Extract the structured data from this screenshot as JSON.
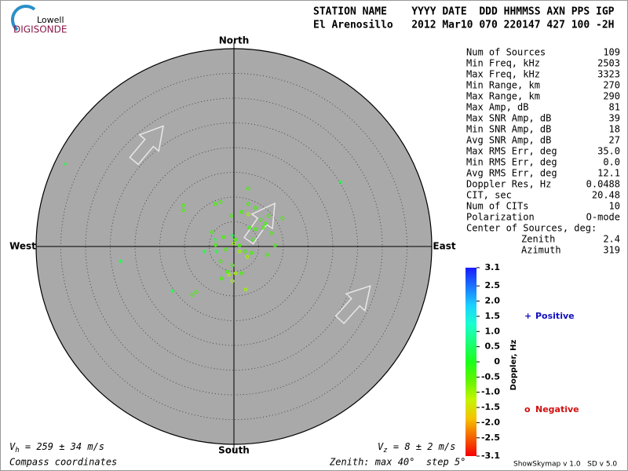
{
  "chart_data": {
    "type": "skymap",
    "logo": {
      "top": "Lowell",
      "main": "DIGISONDE"
    },
    "header": [
      "STATION NAME    YYYY DATE  DDD HHMMSS AXN PPS IGP",
      "El Arenosillo   2012 Mar10 070 220147 427 100 -2H"
    ],
    "directions": {
      "north": "North",
      "south": "South",
      "east": "East",
      "west": "West"
    },
    "rlim": [
      0,
      40
    ],
    "rticks": [
      5,
      10,
      15,
      20,
      25,
      30,
      35,
      40
    ],
    "points": {
      "x": [
        -34.1,
        21.6,
        -22.9,
        -12.4,
        -3.8,
        -3.5,
        -6.0,
        -0.3,
        -10.3,
        -10.3,
        -3.8,
        -2.7,
        2.9,
        -0.6,
        -8.4,
        -7.6,
        -4.4,
        -2.1,
        0.3,
        1.1,
        2.2,
        3.5,
        -1.6,
        -2.7,
        -1.3,
        -0.3,
        3.8,
        6.7,
        8.3,
        7.5,
        9.8,
        2.9,
        4.3,
        5.4,
        6.3,
        3.2,
        4.4,
        5.9,
        7.0,
        1.6,
        -3.7,
        -2.5,
        1.6,
        -0.3,
        0.3,
        2.4,
        2.9,
        0,
        1.1,
        -1.0,
        2.7
      ],
      "y": [
        16.7,
        13.0,
        -3.0,
        -9.0,
        1.4,
        -1.0,
        -1.0,
        2.2,
        8.3,
        7.3,
        8.6,
        9.0,
        11.7,
        6.2,
        -9.8,
        -9.2,
        2.9,
        1.9,
        1.4,
        0.2,
        -1.0,
        -1.3,
        -0.6,
        -3.0,
        -5.1,
        -3.8,
        1.4,
        -1.7,
        0.2,
        2.7,
        5.7,
        8.6,
        7.8,
        5.4,
        4.6,
        3.8,
        3.5,
        3.8,
        6.2,
        7.0,
        0.3,
        -6.5,
        -5.4,
        -7.0,
        -5.4,
        -8.7,
        6.5,
        0.6,
        -1.0,
        -5.7,
        -2.1
      ],
      "doppler": [
        0.3,
        0.3,
        0.3,
        0.3,
        0.3,
        0.3,
        0.3,
        0.3,
        -0.4,
        -0.4,
        -0.4,
        -0.4,
        -0.4,
        -0.4,
        -0.4,
        -0.4,
        -0.4,
        -0.4,
        -0.4,
        -0.4,
        -0.4,
        -0.4,
        -0.4,
        -0.4,
        -0.4,
        -0.4,
        -0.4,
        -0.4,
        -0.4,
        -0.4,
        -0.4,
        -0.4,
        -0.4,
        -0.4,
        -0.4,
        -0.4,
        -0.4,
        -0.4,
        -0.4,
        -0.4,
        -0.4,
        -0.4,
        -0.4,
        -1.0,
        -1.0,
        -1.0,
        -1.0,
        -1.0,
        -1.0,
        -1.0,
        -1.0
      ]
    },
    "stats": [
      {
        "label": "Num of Sources",
        "value": 109
      },
      {
        "label": "Min Freq, kHz",
        "value": 2503
      },
      {
        "label": "Max Freq, kHz",
        "value": 3323
      },
      {
        "label": "Min Range, km",
        "value": 270
      },
      {
        "label": "Max Range, km",
        "value": 290
      },
      {
        "label": "Max Amp, dB",
        "value": 81
      },
      {
        "label": "Max SNR Amp, dB",
        "value": 39
      },
      {
        "label": "Min SNR Amp, dB",
        "value": 18
      },
      {
        "label": "Avg SNR Amp, dB",
        "value": 27
      },
      {
        "label": "Max RMS Err, deg",
        "value": "35.0"
      },
      {
        "label": "Min RMS Err, deg",
        "value": "0.0"
      },
      {
        "label": "Avg RMS Err, deg",
        "value": 12.1
      },
      {
        "label": "Doppler Res, Hz",
        "value": 0.0488
      },
      {
        "label": "CIT, sec",
        "value": 20.48
      },
      {
        "label": "Num of CITs",
        "value": 10
      },
      {
        "label": "Polarization",
        "value": "O-mode"
      }
    ],
    "center_of_sources": {
      "label": "Center of Sources, deg:",
      "rows": [
        {
          "label": "Zenith",
          "value": 2.4
        },
        {
          "label": "Azimuth",
          "value": 319
        }
      ]
    },
    "colorbar": {
      "label": "Doppler, Hz",
      "clim": [
        -3.1,
        3.1
      ],
      "ticks": [
        3.1,
        2.5,
        {
          "value": 2,
          "label": "2.0"
        },
        1.5,
        {
          "value": 1,
          "label": "1.0"
        },
        0.5,
        0,
        -0.5,
        {
          "value": -1,
          "label": "-1.0"
        },
        -1.5,
        {
          "value": -2,
          "label": "-2.0"
        },
        -2.5,
        -3.1
      ]
    },
    "legend": [
      {
        "symbol": "+",
        "label": "Positive",
        "color": "#1010c0"
      },
      {
        "symbol": "o",
        "label": "Negative",
        "color": "#d01010"
      }
    ],
    "vh": {
      "symbol": "V",
      "subscript": "h",
      "text": " = 259 ± 34 m/s"
    },
    "vz": {
      "symbol": "V",
      "subscript": "z",
      "text": " = 8 ± 2 m/s"
    },
    "coordinates": "Compass coordinates",
    "zenith_note": "Zenith: max 40°  step 5°",
    "version": "ShowSkymap v 1.0   SD v 5.0"
  }
}
